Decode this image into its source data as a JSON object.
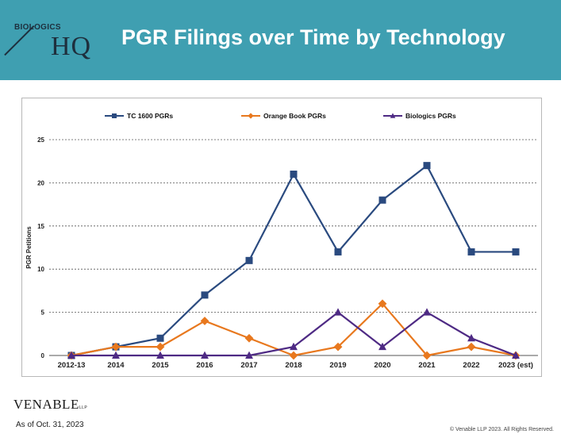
{
  "header": {
    "title": "PGR Filings over Time by Technology",
    "logo_top": "BIOLOGICS",
    "logo_main": "HQ",
    "bg_color": "#3f9fb1"
  },
  "footer": {
    "logo": "VENABLE",
    "logo_suffix": "LLP",
    "as_of": "As of Oct. 31, 2023",
    "copyright": "© Venable LLP 2023. All Rights Reserved."
  },
  "chart_data": {
    "type": "line",
    "title": "",
    "xlabel": "",
    "ylabel": "PGR Petitions",
    "ylim": [
      0,
      25
    ],
    "yticks": [
      0,
      5,
      10,
      15,
      20,
      25
    ],
    "grid": true,
    "legend_position": "top",
    "categories": [
      "2012-13",
      "2014",
      "2015",
      "2016",
      "2017",
      "2018",
      "2019",
      "2020",
      "2021",
      "2022",
      "2023 (est)"
    ],
    "series": [
      {
        "name": "TC 1600 PGRs",
        "color": "#2a4a7f",
        "marker": "square",
        "values": [
          0,
          1,
          2,
          7,
          11,
          21,
          12,
          18,
          22,
          12,
          12
        ]
      },
      {
        "name": "Orange Book PGRs",
        "color": "#e8781e",
        "marker": "diamond",
        "values": [
          0,
          1,
          1,
          4,
          2,
          0,
          1,
          6,
          0,
          1,
          0
        ]
      },
      {
        "name": "Biologics PGRs",
        "color": "#4e2a84",
        "marker": "triangle",
        "values": [
          0,
          0,
          0,
          0,
          0,
          1,
          5,
          1,
          5,
          2,
          0
        ]
      }
    ]
  }
}
